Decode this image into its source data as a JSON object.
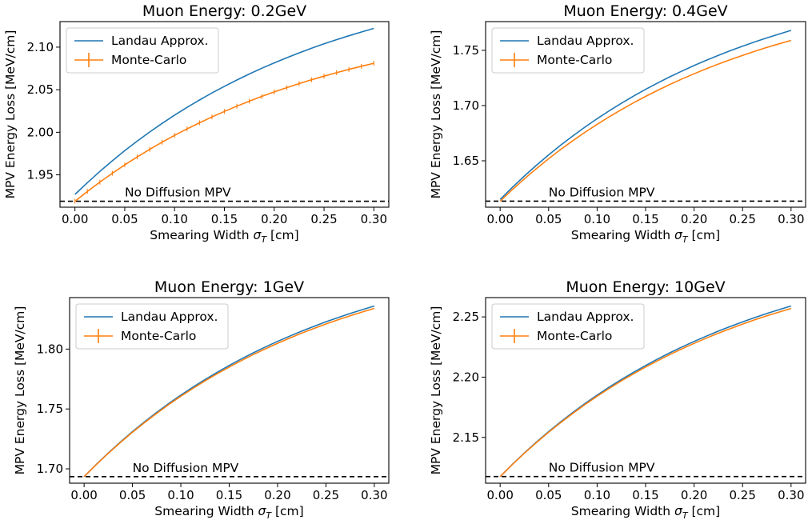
{
  "figure": {
    "xlabel_prefix": "Smearing Width ",
    "xlabel_symbol": "σ",
    "xlabel_subscript": "T",
    "xlabel_suffix": " [cm]",
    "ylabel": "MPV Energy Loss [MeV/cm]",
    "annotation": "No Diffusion MPV"
  },
  "colors": {
    "landau": "#1f77b4",
    "monte_carlo": "#ff7f0e",
    "baseline": "#000000",
    "axes": "#000000"
  },
  "chart_data": [
    {
      "type": "line",
      "title": "Muon Energy: 0.2GeV",
      "xlabel": "Smearing Width σT [cm]",
      "ylabel": "MPV Energy Loss [MeV/cm]",
      "x": [
        0.0,
        0.0125,
        0.025,
        0.0375,
        0.05,
        0.0625,
        0.075,
        0.0875,
        0.1,
        0.1125,
        0.125,
        0.1375,
        0.15,
        0.1625,
        0.175,
        0.1875,
        0.2,
        0.2125,
        0.225,
        0.2375,
        0.25,
        0.2625,
        0.275,
        0.2875,
        0.3
      ],
      "xticks": [
        "0.00",
        "0.05",
        "0.10",
        "0.15",
        "0.20",
        "0.25",
        "0.30"
      ],
      "yticks": [
        "1.95",
        "2.00",
        "2.05",
        "2.10"
      ],
      "xlim": [
        -0.015,
        0.315
      ],
      "ylim": [
        1.912,
        2.13
      ],
      "baseline": 1.919,
      "legend": "top-left",
      "grid": false,
      "series": [
        {
          "name": "Landau Approx.",
          "style": "line",
          "values": [
            1.927,
            1.9386,
            1.9502,
            1.9618,
            1.9733,
            1.9846,
            1.9957,
            2.0066,
            2.0173,
            2.0277,
            2.0379,
            2.0477,
            2.0573,
            2.0665,
            2.0753,
            2.0837,
            2.0918,
            2.0994,
            2.1066,
            2.1133,
            2.1195,
            2.1252,
            2.1303,
            2.135,
            2.122
          ]
        },
        {
          "name": "Monte-Carlo",
          "style": "errorbar",
          "values": [
            1.919,
            1.9291,
            1.9392,
            1.9492,
            1.9592,
            1.9689,
            1.9785,
            1.9879,
            1.997,
            2.0059,
            2.0144,
            2.0226,
            2.0305,
            2.038,
            2.0451,
            2.0517,
            2.058,
            2.0638,
            2.0691,
            2.074,
            2.0783,
            2.0821,
            2.0854,
            2.0882,
            2.081
          ]
        }
      ]
    },
    {
      "type": "line",
      "title": "Muon Energy: 0.4GeV",
      "xlabel": "Smearing Width σT [cm]",
      "ylabel": "MPV Energy Loss [MeV/cm]",
      "x": [
        0.0,
        0.0125,
        0.025,
        0.0375,
        0.05,
        0.0625,
        0.075,
        0.0875,
        0.1,
        0.1125,
        0.125,
        0.1375,
        0.15,
        0.1625,
        0.175,
        0.1875,
        0.2,
        0.2125,
        0.225,
        0.2375,
        0.25,
        0.2625,
        0.275,
        0.2875,
        0.3
      ],
      "xticks": [
        "0.00",
        "0.05",
        "0.10",
        "0.15",
        "0.20",
        "0.25",
        "0.30"
      ],
      "yticks": [
        "1.65",
        "1.70",
        "1.75"
      ],
      "xlim": [
        -0.015,
        0.315
      ],
      "ylim": [
        1.608,
        1.776
      ],
      "baseline": 1.6135,
      "legend": "top-left",
      "grid": false,
      "series": [
        {
          "name": "Landau Approx.",
          "style": "line",
          "values": [
            1.615,
            1.6238,
            1.6326,
            1.6414,
            1.6501,
            1.6587,
            1.6671,
            1.6754,
            1.6835,
            1.6913,
            1.699,
            1.7064,
            1.7135,
            1.7203,
            1.7268,
            1.733,
            1.7389,
            1.7444,
            1.7495,
            1.7542,
            1.7585,
            1.7623,
            1.7657,
            1.7687,
            1.768
          ]
        },
        {
          "name": "Monte-Carlo",
          "style": "errorbar",
          "values": [
            1.6135,
            1.622,
            1.6306,
            1.6391,
            1.6476,
            1.6559,
            1.6641,
            1.6721,
            1.6799,
            1.6875,
            1.6949,
            1.702,
            1.7088,
            1.7153,
            1.7215,
            1.7274,
            1.7329,
            1.7381,
            1.7429,
            1.7473,
            1.7513,
            1.7548,
            1.7579,
            1.7606,
            1.759
          ]
        }
      ]
    },
    {
      "type": "line",
      "title": "Muon Energy: 1GeV",
      "xlabel": "Smearing Width σT [cm]",
      "ylabel": "MPV Energy Loss [MeV/cm]",
      "x": [
        0.0,
        0.0125,
        0.025,
        0.0375,
        0.05,
        0.0625,
        0.075,
        0.0875,
        0.1,
        0.1125,
        0.125,
        0.1375,
        0.15,
        0.1625,
        0.175,
        0.1875,
        0.2,
        0.2125,
        0.225,
        0.2375,
        0.25,
        0.2625,
        0.275,
        0.2875,
        0.3
      ],
      "xticks": [
        "0.00",
        "0.05",
        "0.10",
        "0.15",
        "0.20",
        "0.25",
        "0.30"
      ],
      "yticks": [
        "1.70",
        "1.75",
        "1.80"
      ],
      "xlim": [
        -0.015,
        0.315
      ],
      "ylim": [
        1.688,
        1.843
      ],
      "baseline": 1.6935,
      "legend": "top-left",
      "grid": false,
      "series": [
        {
          "name": "Landau Approx.",
          "style": "line",
          "values": [
            1.6935,
            1.7002,
            1.707,
            1.7138,
            1.7205,
            1.7272,
            1.7338,
            1.7403,
            1.7467,
            1.7529,
            1.759,
            1.7648,
            1.7705,
            1.7759,
            1.7811,
            1.786,
            1.7906,
            1.7949,
            1.7989,
            1.8026,
            1.806,
            1.809,
            1.8117,
            1.814,
            1.836
          ]
        },
        {
          "name": "Monte-Carlo",
          "style": "errorbar",
          "values": [
            1.6935,
            1.7,
            1.7066,
            1.7132,
            1.7197,
            1.7262,
            1.7326,
            1.7389,
            1.7451,
            1.7512,
            1.7571,
            1.7628,
            1.7683,
            1.7736,
            1.7786,
            1.7834,
            1.7879,
            1.7921,
            1.796,
            1.7996,
            1.8029,
            1.8058,
            1.8084,
            1.8107,
            1.834
          ]
        }
      ]
    },
    {
      "type": "line",
      "title": "Muon Energy: 10GeV",
      "xlabel": "Smearing Width σT [cm]",
      "ylabel": "MPV Energy Loss [MeV/cm]",
      "x": [
        0.0,
        0.0125,
        0.025,
        0.0375,
        0.05,
        0.0625,
        0.075,
        0.0875,
        0.1,
        0.1125,
        0.125,
        0.1375,
        0.15,
        0.1625,
        0.175,
        0.1875,
        0.2,
        0.2125,
        0.225,
        0.2375,
        0.25,
        0.2625,
        0.275,
        0.2875,
        0.3
      ],
      "xticks": [
        "0.00",
        "0.05",
        "0.10",
        "0.15",
        "0.20",
        "0.25",
        "0.30"
      ],
      "yticks": [
        "2.15",
        "2.20",
        "2.25"
      ],
      "xlim": [
        -0.015,
        0.315
      ],
      "ylim": [
        2.112,
        2.266
      ],
      "baseline": 2.1175,
      "legend": "top-left",
      "grid": false,
      "series": [
        {
          "name": "Landau Approx.",
          "style": "line",
          "values": [
            2.1175,
            2.1242,
            2.131,
            2.1378,
            2.1445,
            2.1512,
            2.1578,
            2.1643,
            2.1707,
            2.1769,
            2.183,
            2.1888,
            2.1945,
            2.1999,
            2.2051,
            2.21,
            2.2146,
            2.2189,
            2.2229,
            2.2266,
            2.23,
            2.233,
            2.2357,
            2.238,
            2.259
          ]
        },
        {
          "name": "Monte-Carlo",
          "style": "errorbar",
          "values": [
            2.1175,
            2.124,
            2.1306,
            2.1372,
            2.1437,
            2.1502,
            2.1566,
            2.1629,
            2.1691,
            2.1752,
            2.1811,
            2.1868,
            2.1923,
            2.1976,
            2.2026,
            2.2074,
            2.2119,
            2.2161,
            2.22,
            2.2236,
            2.2269,
            2.2298,
            2.2324,
            2.2347,
            2.257
          ]
        }
      ]
    }
  ]
}
